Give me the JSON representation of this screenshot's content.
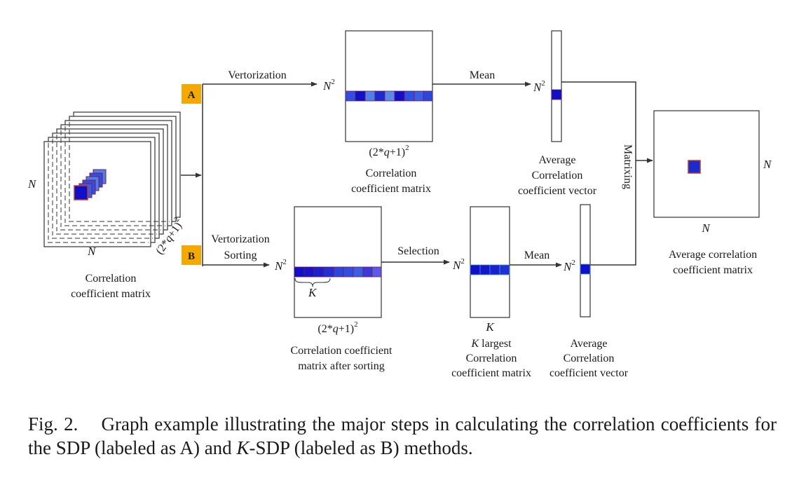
{
  "badges": {
    "a": "A",
    "b": "B"
  },
  "labels": {
    "vectorization": "Vertorization",
    "vectorization_b": "Vertorization",
    "sorting": "Sorting",
    "mean_a": "Mean",
    "mean_b": "Mean",
    "selection": "Selection",
    "matrixing": "Matrixing",
    "n": "N",
    "n2": "N",
    "sq": "2",
    "k": "K",
    "q_expr_pre": "(2*",
    "q_var": "q",
    "q_expr_post": "+1)",
    "input_caption": [
      "Correlation",
      "coefficient matrix"
    ],
    "corr_a_caption": [
      "Correlation",
      "coefficient matrix"
    ],
    "avg_vec_a_caption": [
      "Average",
      "Correlation",
      "coefficient vector"
    ],
    "corr_b_caption": [
      "Correlation coefficient",
      "matrix after sorting"
    ],
    "klargest_caption": [
      "largest",
      "Correlation",
      "coefficient matrix"
    ],
    "avg_vec_b_caption": [
      "Average",
      "Correlation",
      "coefficient vector"
    ],
    "output_caption": [
      "Average correlation",
      "coefficient matrix"
    ]
  },
  "colors": {
    "badge": "#f5a800",
    "cell_dark": "#1010c8",
    "cell_mid": "#2f4fe0",
    "cell_light": "#4f7fe8",
    "cell_border": "#7d1a55",
    "marker_border": "#c0392b"
  },
  "figure_caption": {
    "prefix": "Fig. 2.",
    "text1": "Graph example illustrating the major steps in calculating the correlation coefficients for the SDP (labeled as A) and ",
    "k": "K",
    "text2": "-SDP (labeled as B) methods."
  }
}
